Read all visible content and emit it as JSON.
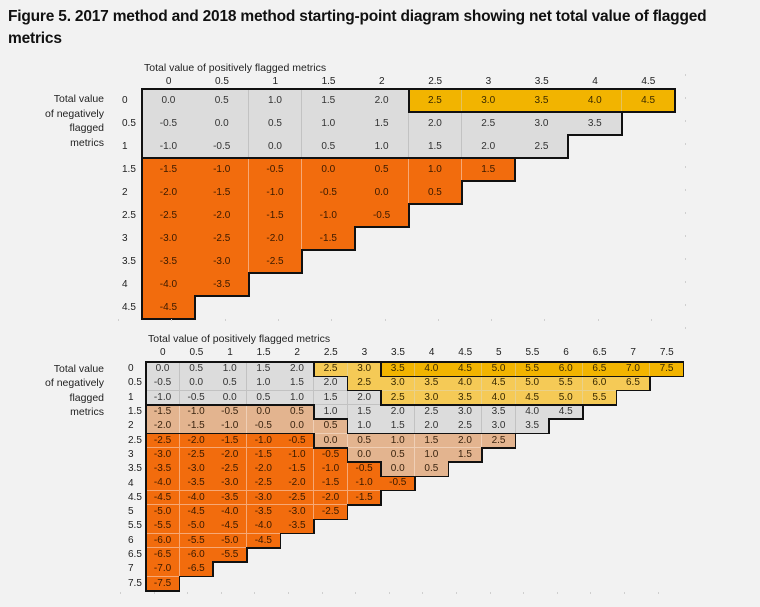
{
  "title": "Figure 5. 2017 method and 2018 method starting-point diagram showing net total value of flagged metrics",
  "diagrams": [
    {
      "name": "2017-method",
      "x_axis_title": "Total value of positively flagged metrics",
      "y_axis_title_lines": [
        "Total value",
        "of negatively",
        "flagged",
        "metrics"
      ],
      "max": 4.5,
      "zones": {
        "gold": "#F2B400",
        "grey": "#DCDCDC",
        "orange": "#F26C0D"
      },
      "zone_rules": "row 0 with value >= 2.5 gold; rows 0-1 otherwise grey; rows >= 1.5 orange"
    },
    {
      "name": "2018-method",
      "x_axis_title": "Total value of positively flagged metrics",
      "y_axis_title_lines": [
        "Total value",
        "of negatively",
        "flagged",
        "metrics"
      ],
      "max": 7.5,
      "zones": {
        "gold": "#F2B400",
        "light_gold": "#F5CA56",
        "grey": "#DCDCDC",
        "tan": "#E3B48F",
        "orange": "#F26C0D"
      },
      "zone_rules": "row 0 value >= 3.5 gold; rows 0-1 value >= 2.5 light gold; rows 0-1 otherwise grey; rows 1.5-2 value <= 0.5 tan else grey; rows >= 2.5 value <= -0.5 orange else tan"
    }
  ]
}
